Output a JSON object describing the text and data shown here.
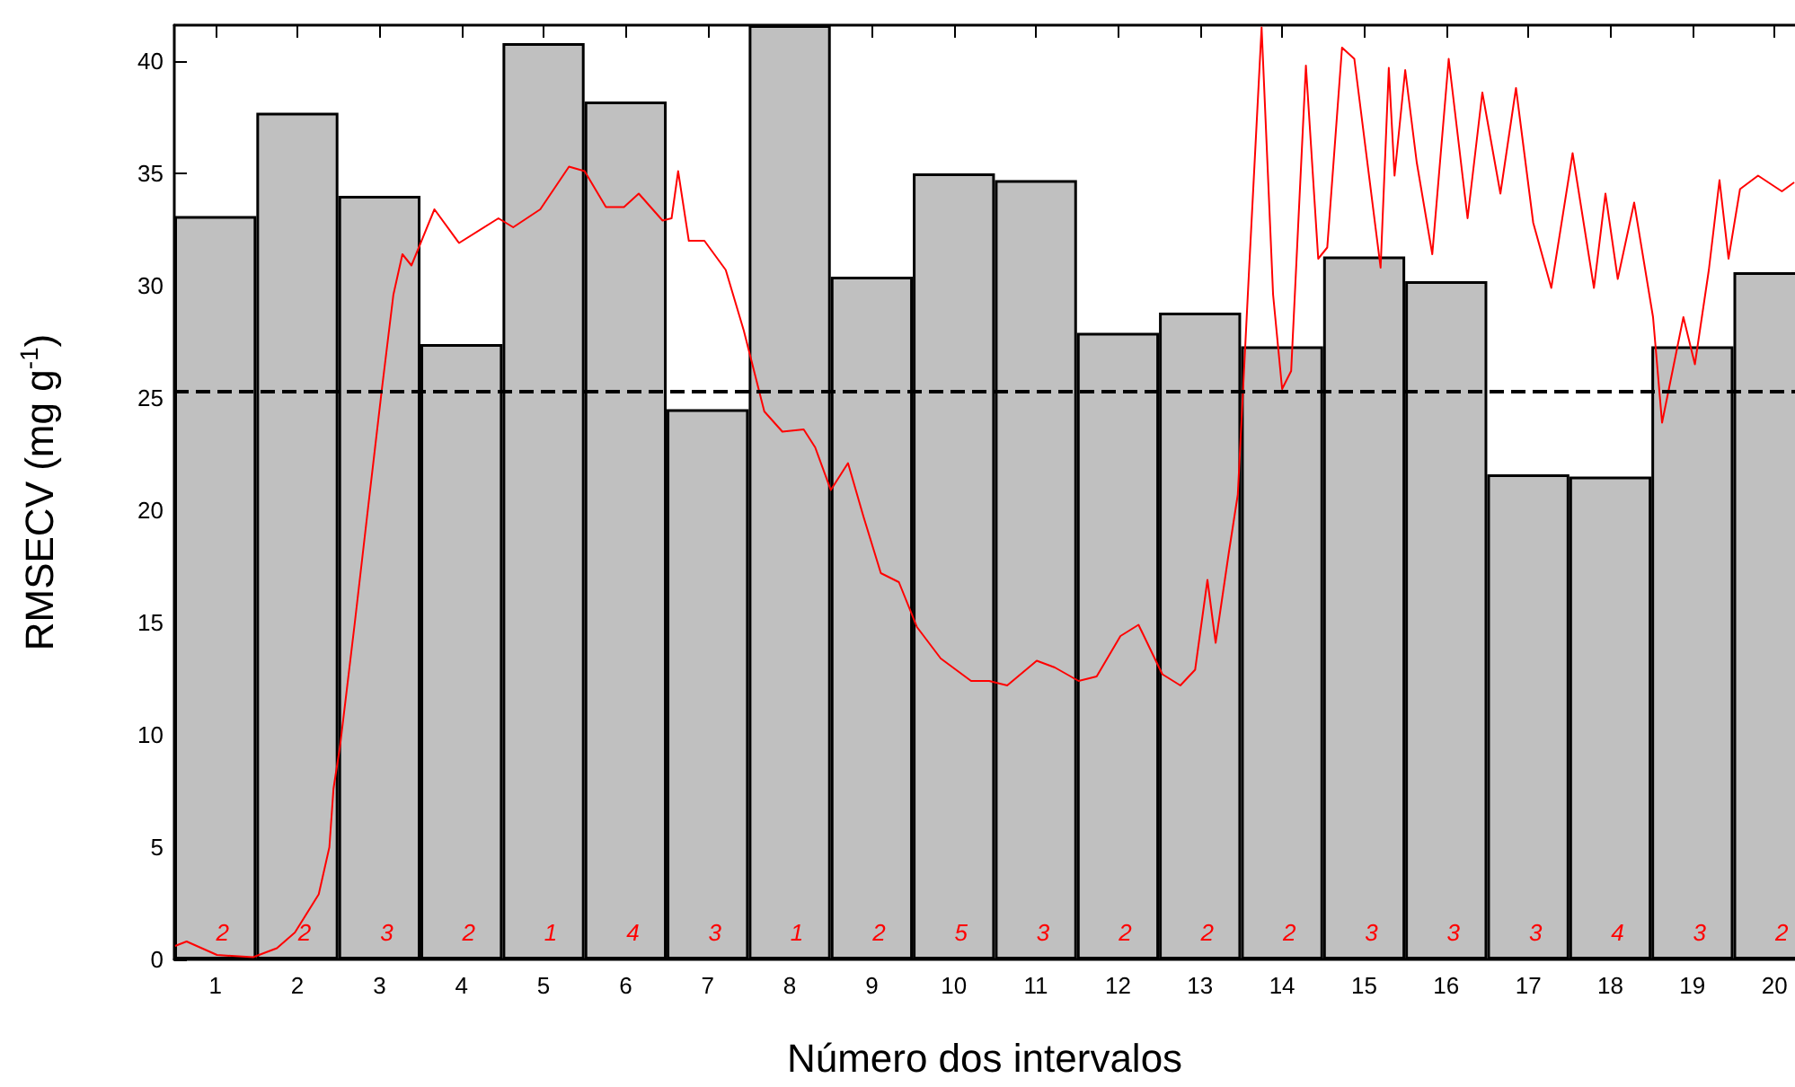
{
  "chart_data": {
    "type": "bar",
    "xlabel": "Número dos intervalos",
    "ylabel": "RMSECV (mg g$^{-1}$)",
    "xlim": [
      0.5,
      20.25
    ],
    "xticks": [
      1,
      2,
      3,
      4,
      5,
      6,
      7,
      8,
      9,
      10,
      11,
      12,
      13,
      14,
      15,
      16,
      17,
      18,
      19,
      20
    ],
    "ylim": [
      0,
      41.6
    ],
    "yticks": [
      0,
      5,
      10,
      15,
      20,
      25,
      30,
      35,
      40
    ],
    "grid": false,
    "x": [
      1,
      2,
      3,
      4,
      5,
      6,
      7,
      8,
      9,
      10,
      11,
      12,
      13,
      14,
      15,
      16,
      17,
      18,
      19,
      20
    ],
    "series": [
      {
        "color": "#c0c0c0",
        "values": [
          33.1,
          37.7,
          34.0,
          27.4,
          40.8,
          38.2,
          24.5,
          41.6,
          30.4,
          35.0,
          34.7,
          27.9,
          28.8,
          27.3,
          31.3,
          30.2,
          21.6,
          21.5,
          27.3,
          30.6
        ]
      },
      {
        "type": "line",
        "color": "#ff0000",
        "marker": "none",
        "line_style": "solid",
        "x": [
          0.51,
          0.65,
          1.02,
          1.46,
          1.75,
          1.97,
          2.26,
          2.39,
          2.44,
          2.52,
          2.7,
          2.88,
          3.03,
          3.17,
          3.28,
          3.39,
          3.67,
          3.97,
          4.45,
          4.63,
          4.96,
          5.31,
          5.5,
          5.76,
          5.98,
          6.16,
          6.45,
          6.56,
          6.64,
          6.77,
          6.96,
          7.22,
          7.44,
          7.69,
          7.91,
          8.17,
          8.31,
          8.5,
          8.71,
          8.9,
          9.11,
          9.33,
          9.55,
          9.84,
          10.21,
          10.43,
          10.65,
          11.01,
          11.23,
          11.52,
          11.74,
          12.03,
          12.25,
          12.54,
          12.76,
          12.94,
          13.09,
          13.19,
          13.35,
          13.46,
          13.6,
          13.75,
          13.89,
          14.0,
          14.11,
          14.29,
          14.44,
          14.55,
          14.73,
          14.88,
          15.2,
          15.3,
          15.37,
          15.5,
          15.64,
          15.83,
          16.03,
          16.26,
          16.44,
          16.66,
          16.85,
          17.06,
          17.28,
          17.54,
          17.8,
          17.94,
          18.09,
          18.29,
          18.52,
          18.63,
          18.89,
          19.03,
          19.2,
          19.33,
          19.44,
          19.58,
          19.8,
          20.09,
          20.24
        ],
        "values": [
          0.6,
          0.8,
          0.2,
          0.1,
          0.5,
          1.2,
          2.9,
          5.0,
          7.6,
          9.5,
          15.0,
          20.7,
          25.4,
          29.6,
          31.4,
          30.9,
          33.4,
          31.9,
          33.0,
          32.6,
          33.4,
          35.3,
          35.1,
          33.5,
          33.5,
          34.1,
          32.9,
          33.0,
          35.1,
          32.0,
          32.0,
          30.7,
          28.0,
          24.4,
          23.5,
          23.6,
          22.8,
          20.9,
          22.1,
          19.7,
          17.2,
          16.8,
          14.8,
          13.4,
          12.4,
          12.4,
          12.2,
          13.3,
          13.0,
          12.4,
          12.6,
          14.4,
          14.9,
          12.7,
          12.2,
          12.9,
          16.9,
          14.1,
          18.1,
          20.7,
          30.9,
          41.5,
          29.6,
          25.4,
          26.2,
          39.8,
          31.2,
          31.7,
          40.6,
          40.1,
          30.8,
          39.7,
          34.9,
          39.6,
          35.5,
          31.4,
          40.1,
          33.0,
          38.6,
          34.1,
          38.8,
          32.8,
          29.9,
          35.9,
          29.9,
          34.1,
          30.3,
          33.7,
          28.6,
          23.9,
          28.6,
          26.5,
          30.7,
          34.7,
          31.2,
          34.3,
          34.9,
          34.2,
          34.6
        ]
      }
    ],
    "ref_lines": [
      {
        "axis": "y",
        "value": 25.3,
        "color": "#000000",
        "line_style": "dashed"
      }
    ],
    "annotations": [
      "2",
      "2",
      "3",
      "2",
      "1",
      "4",
      "3",
      "1",
      "2",
      "5",
      "3",
      "2",
      "2",
      "2",
      "3",
      "3",
      "3",
      "4",
      "3",
      "2"
    ]
  }
}
